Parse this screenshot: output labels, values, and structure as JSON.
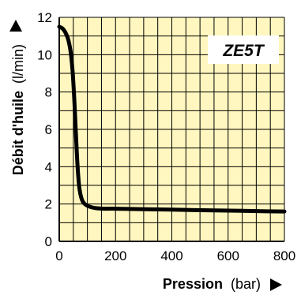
{
  "colors": {
    "plot_background": "#FFF7BF",
    "grid": "#000000",
    "curve": "#000000",
    "label_box": "#FFFFFF"
  },
  "chart_data": {
    "type": "line",
    "model_label": "ZE5T",
    "xlabel_main": "Pression",
    "xlabel_unit": "(bar)",
    "ylabel_main": "Débit d'huile",
    "ylabel_unit": "(l/min)",
    "xlim": [
      0,
      800
    ],
    "ylim": [
      0,
      12
    ],
    "x_ticks": [
      0,
      200,
      400,
      600,
      800
    ],
    "x_tick_labels": [
      "0",
      "200",
      "400",
      "600",
      "800"
    ],
    "y_ticks": [
      0,
      2,
      4,
      6,
      8,
      10,
      12
    ],
    "y_tick_labels": [
      "0",
      "2",
      "4",
      "6",
      "8",
      "10",
      "12"
    ],
    "x_gridlines": [
      0,
      50,
      100,
      150,
      200,
      250,
      300,
      350,
      400,
      450,
      500,
      550,
      600,
      650,
      700,
      750,
      800
    ],
    "y_gridlines": [
      0,
      1,
      2,
      3,
      4,
      5,
      6,
      7,
      8,
      9,
      10,
      11,
      12
    ],
    "grid": true,
    "series": [
      {
        "x": [
          0,
          15,
          30,
          40,
          47,
          52,
          56,
          60,
          64,
          68,
          72,
          78,
          85,
          95,
          110,
          130,
          160,
          200,
          300,
          400,
          500,
          600,
          700,
          800
        ],
        "y": [
          11.5,
          11.35,
          10.9,
          10.2,
          9.2,
          8.0,
          6.8,
          5.5,
          4.3,
          3.4,
          2.8,
          2.35,
          2.1,
          1.95,
          1.85,
          1.78,
          1.75,
          1.75,
          1.72,
          1.7,
          1.67,
          1.65,
          1.62,
          1.6
        ]
      }
    ]
  }
}
